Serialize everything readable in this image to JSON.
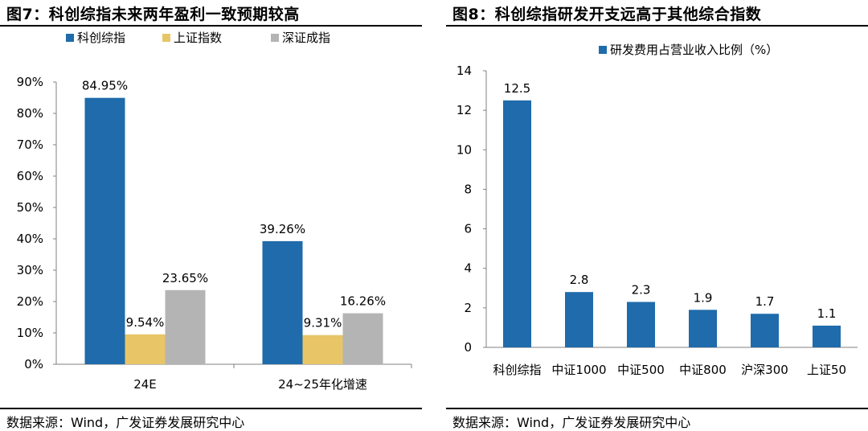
{
  "left": {
    "title": "图7：科创综指未来两年盈利一致预期较高",
    "source": "数据来源：Wind，广发证券发展研究中心"
  },
  "right": {
    "title": "图8：科创综指研发开支远高于其他综合指数",
    "source": "数据来源：Wind，广发证券发展研究中心"
  },
  "chart_data": [
    {
      "type": "bar",
      "title": "图7：科创综指未来两年盈利一致预期较高",
      "categories": [
        "24E",
        "24~25年化增速"
      ],
      "series": [
        {
          "name": "科创综指",
          "color": "#1f6bab",
          "values": [
            84.95,
            39.26
          ],
          "labels": [
            "84.95%",
            "39.26%"
          ]
        },
        {
          "name": "上证指数",
          "color": "#e8c567",
          "values": [
            9.54,
            9.31
          ],
          "labels": [
            "9.54%",
            "9.31%"
          ]
        },
        {
          "name": "深证成指",
          "color": "#b4b4b4",
          "values": [
            23.65,
            16.26
          ],
          "labels": [
            "23.65%",
            "16.26%"
          ]
        }
      ],
      "ylim": [
        0,
        90
      ],
      "yticks": [
        "0%",
        "10%",
        "20%",
        "30%",
        "40%",
        "50%",
        "60%",
        "70%",
        "80%",
        "90%"
      ],
      "legend": "top",
      "grid": false
    },
    {
      "type": "bar",
      "title": "图8：科创综指研发开支远高于其他综合指数",
      "categories": [
        "科创综指",
        "中证1000",
        "中证500",
        "中证800",
        "沪深300",
        "上证50"
      ],
      "series": [
        {
          "name": "研发费用占营业收入比例（%）",
          "color": "#1f6bab",
          "values": [
            12.5,
            2.8,
            2.3,
            1.9,
            1.7,
            1.1
          ],
          "labels": [
            "12.5",
            "2.8",
            "2.3",
            "1.9",
            "1.7",
            "1.1"
          ]
        }
      ],
      "ylim": [
        0,
        14
      ],
      "yticks": [
        "0",
        "2",
        "4",
        "6",
        "8",
        "10",
        "12",
        "14"
      ],
      "legend": "top",
      "grid": false
    }
  ]
}
